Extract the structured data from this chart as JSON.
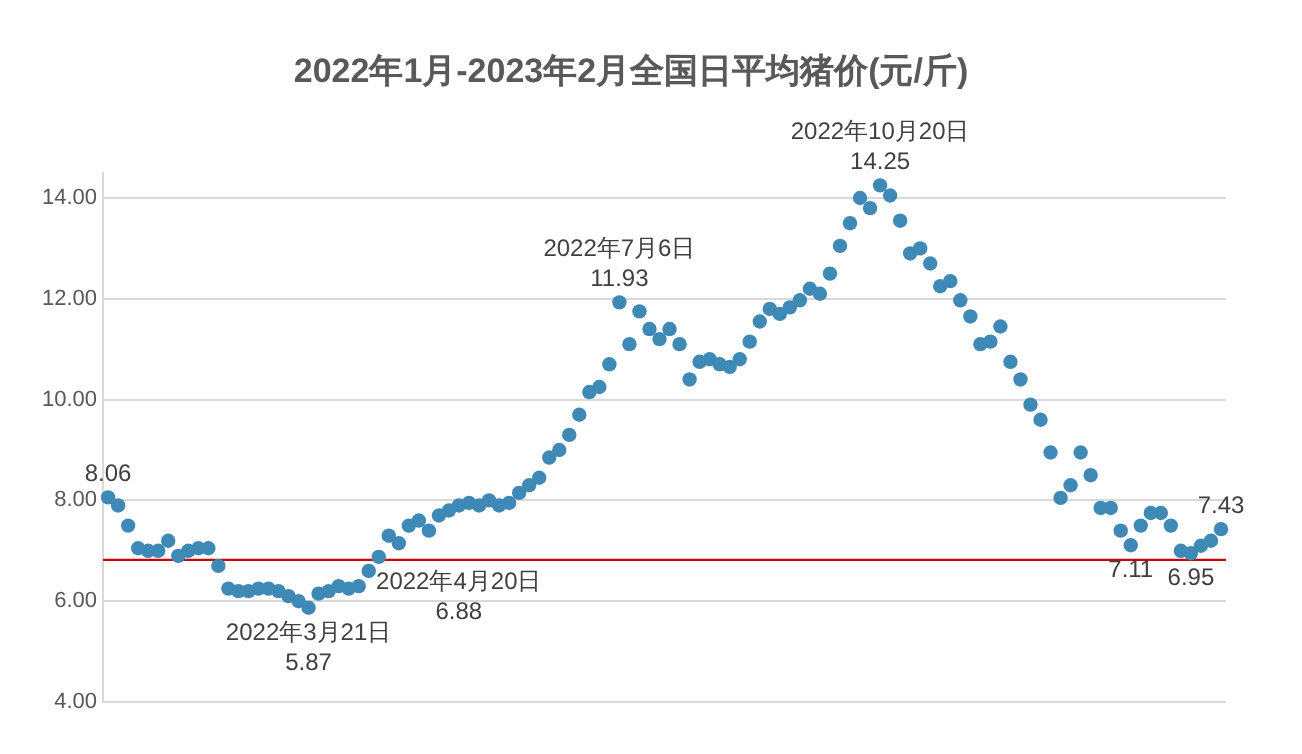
{
  "chart_data": {
    "type": "scatter",
    "title": "2022年1月-2023年2月全国日平均猪价(元/斤)",
    "categories": [
      null,
      null,
      null,
      null,
      null,
      null,
      null,
      null,
      null,
      null,
      null,
      null,
      null,
      null,
      null,
      null,
      null,
      null,
      null,
      null,
      null,
      null,
      null,
      null,
      null,
      null,
      null,
      null,
      null,
      null,
      null,
      null,
      null,
      null,
      null,
      null,
      null,
      null,
      null,
      null,
      null,
      null,
      null,
      null,
      null,
      null,
      null,
      null,
      null,
      null,
      null,
      null,
      null,
      null,
      null,
      null,
      null,
      null,
      null,
      null,
      null,
      null,
      null,
      null,
      null,
      null,
      null,
      null,
      null,
      null,
      null,
      null,
      null,
      null,
      null,
      null,
      null,
      null,
      null,
      null,
      null,
      null,
      null,
      null,
      null,
      null,
      null,
      null,
      null,
      null,
      null,
      null,
      null,
      null,
      null,
      null,
      null,
      null,
      null,
      null,
      null,
      null,
      null,
      null,
      null,
      null,
      null,
      null,
      null,
      null,
      null,
      null
    ],
    "series": [
      {
        "color": "#3f89b6",
        "values": [
          8.06,
          7.9,
          7.5,
          7.05,
          7.0,
          7.0,
          7.2,
          6.9,
          7.0,
          7.05,
          7.05,
          6.7,
          6.25,
          6.2,
          6.2,
          6.25,
          6.25,
          6.2,
          6.1,
          6.0,
          5.87,
          6.15,
          6.2,
          6.3,
          6.25,
          6.3,
          6.6,
          6.88,
          7.3,
          7.15,
          7.5,
          7.6,
          7.4,
          7.7,
          7.8,
          7.9,
          7.95,
          7.9,
          8.0,
          7.9,
          7.95,
          8.15,
          8.3,
          8.45,
          8.85,
          9.0,
          9.3,
          9.7,
          10.15,
          10.25,
          10.7,
          11.93,
          11.1,
          11.75,
          11.4,
          11.2,
          11.4,
          11.1,
          10.4,
          10.75,
          10.8,
          10.7,
          10.65,
          10.8,
          11.15,
          11.55,
          11.8,
          11.7,
          11.83,
          11.97,
          12.2,
          12.1,
          12.5,
          13.05,
          13.5,
          14.0,
          13.8,
          14.25,
          14.05,
          13.55,
          12.9,
          13.0,
          12.7,
          12.25,
          12.35,
          11.97,
          11.65,
          11.1,
          11.15,
          11.45,
          10.75,
          10.4,
          9.9,
          9.6,
          8.95,
          8.05,
          8.3,
          8.95,
          8.5,
          7.85,
          7.85,
          7.4,
          7.11,
          7.5,
          7.75,
          7.75,
          7.5,
          7.0,
          6.95,
          7.1,
          7.2,
          7.43
        ]
      }
    ],
    "ylim": [
      4,
      14.5
    ],
    "yticks": [
      {
        "value": 4,
        "label": "4.00"
      },
      {
        "value": 6,
        "label": "6.00"
      },
      {
        "value": 8,
        "label": "8.00"
      },
      {
        "value": 10,
        "label": "10.00"
      },
      {
        "value": 12,
        "label": "12.00"
      },
      {
        "value": 14,
        "label": "14.00"
      }
    ],
    "grid": "y",
    "marker": "circle",
    "ref_lines": [
      {
        "axis": "y",
        "value": 6.82,
        "color": "#d00000"
      }
    ],
    "annotations": [
      {
        "text": "8.06",
        "y": 8.06
      },
      {
        "text": "2022年3月21日\n5.87",
        "y": 5.87
      },
      {
        "text": "2022年4月20日\n6.88",
        "y": 6.88
      },
      {
        "text": "2022年7月6日\n11.93",
        "y": 11.93
      },
      {
        "text": "2022年10月20日\n14.25",
        "y": 14.25
      },
      {
        "text": "7.11",
        "y": 7.11
      },
      {
        "text": "6.95",
        "y": 6.95
      },
      {
        "text": "7.43",
        "y": 7.43
      }
    ]
  }
}
